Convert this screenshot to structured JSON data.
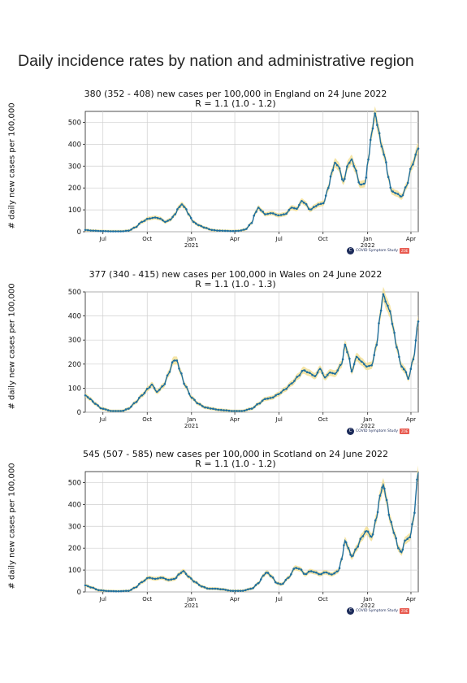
{
  "page": {
    "title": "Daily incidence rates by nation and administrative region"
  },
  "logo": {
    "mark": "C",
    "text": "COVID Symptom Study",
    "badge": "ZOE"
  },
  "chart_data": [
    {
      "type": "line",
      "title": "380 (352 - 408) new cases per 100,000 in England on 24 June 2022",
      "subtitle": "R = 1.1 (1.0 - 1.2)",
      "ylabel": "# daily new cases per 100,000",
      "ylim": [
        0,
        550
      ],
      "yticks": [
        0,
        100,
        200,
        300,
        400,
        500
      ],
      "xticks": [
        {
          "label": "Jul",
          "sub": "",
          "t": 0.053
        },
        {
          "label": "Oct",
          "sub": "",
          "t": 0.186
        },
        {
          "label": "Jan",
          "sub": "2021",
          "t": 0.319
        },
        {
          "label": "Apr",
          "sub": "",
          "t": 0.449
        },
        {
          "label": "Jul",
          "sub": "",
          "t": 0.582
        },
        {
          "label": "Oct",
          "sub": "",
          "t": 0.714
        },
        {
          "label": "Jan",
          "sub": "2022",
          "t": 0.848
        },
        {
          "label": "Apr",
          "sub": "",
          "t": 0.978
        }
      ],
      "series": [
        {
          "points": [
            [
              0,
              8
            ],
            [
              0.02,
              5
            ],
            [
              0.05,
              3
            ],
            [
              0.08,
              2
            ],
            [
              0.11,
              2
            ],
            [
              0.13,
              5
            ],
            [
              0.15,
              20
            ],
            [
              0.17,
              45
            ],
            [
              0.19,
              60
            ],
            [
              0.21,
              65
            ],
            [
              0.225,
              60
            ],
            [
              0.24,
              45
            ],
            [
              0.255,
              55
            ],
            [
              0.27,
              80
            ],
            [
              0.28,
              110
            ],
            [
              0.29,
              125
            ],
            [
              0.3,
              110
            ],
            [
              0.31,
              80
            ],
            [
              0.325,
              45
            ],
            [
              0.34,
              30
            ],
            [
              0.36,
              18
            ],
            [
              0.38,
              8
            ],
            [
              0.4,
              5
            ],
            [
              0.42,
              4
            ],
            [
              0.44,
              3
            ],
            [
              0.46,
              4
            ],
            [
              0.48,
              10
            ],
            [
              0.5,
              40
            ],
            [
              0.51,
              85
            ],
            [
              0.52,
              110
            ],
            [
              0.53,
              95
            ],
            [
              0.54,
              80
            ],
            [
              0.56,
              85
            ],
            [
              0.58,
              75
            ],
            [
              0.6,
              80
            ],
            [
              0.62,
              110
            ],
            [
              0.635,
              105
            ],
            [
              0.65,
              140
            ],
            [
              0.66,
              130
            ],
            [
              0.675,
              100
            ],
            [
              0.69,
              115
            ],
            [
              0.7,
              125
            ],
            [
              0.715,
              130
            ],
            [
              0.73,
              200
            ],
            [
              0.74,
              270
            ],
            [
              0.75,
              315
            ],
            [
              0.76,
              300
            ],
            [
              0.775,
              230
            ],
            [
              0.79,
              310
            ],
            [
              0.8,
              330
            ],
            [
              0.81,
              290
            ],
            [
              0.825,
              215
            ],
            [
              0.84,
              220
            ],
            [
              0.85,
              330
            ],
            [
              0.86,
              450
            ],
            [
              0.87,
              540
            ],
            [
              0.88,
              470
            ],
            [
              0.89,
              390
            ],
            [
              0.9,
              340
            ],
            [
              0.91,
              250
            ],
            [
              0.92,
              185
            ],
            [
              0.935,
              175
            ],
            [
              0.95,
              160
            ],
            [
              0.965,
              210
            ],
            [
              0.98,
              300
            ],
            [
              1.0,
              380
            ]
          ]
        }
      ]
    },
    {
      "type": "line",
      "title": "377 (340 - 415) new cases per 100,000 in Wales on 24 June 2022",
      "subtitle": "R = 1.1 (1.0 - 1.3)",
      "ylabel": "# daily new cases per 100,000",
      "ylim": [
        0,
        500
      ],
      "yticks": [
        0,
        100,
        200,
        300,
        400,
        500
      ],
      "xticks": [
        {
          "label": "Jul",
          "sub": "",
          "t": 0.053
        },
        {
          "label": "Oct",
          "sub": "",
          "t": 0.186
        },
        {
          "label": "Jan",
          "sub": "2021",
          "t": 0.319
        },
        {
          "label": "Apr",
          "sub": "",
          "t": 0.449
        },
        {
          "label": "Jul",
          "sub": "",
          "t": 0.582
        },
        {
          "label": "Oct",
          "sub": "",
          "t": 0.714
        },
        {
          "label": "Jan",
          "sub": "2022",
          "t": 0.848
        },
        {
          "label": "Apr",
          "sub": "",
          "t": 0.978
        }
      ],
      "series": [
        {
          "points": [
            [
              0,
              70
            ],
            [
              0.015,
              55
            ],
            [
              0.03,
              35
            ],
            [
              0.05,
              15
            ],
            [
              0.08,
              5
            ],
            [
              0.11,
              5
            ],
            [
              0.13,
              15
            ],
            [
              0.15,
              40
            ],
            [
              0.17,
              70
            ],
            [
              0.19,
              100
            ],
            [
              0.2,
              115
            ],
            [
              0.215,
              85
            ],
            [
              0.235,
              110
            ],
            [
              0.25,
              160
            ],
            [
              0.265,
              215
            ],
            [
              0.275,
              215
            ],
            [
              0.285,
              170
            ],
            [
              0.3,
              110
            ],
            [
              0.32,
              60
            ],
            [
              0.34,
              35
            ],
            [
              0.36,
              20
            ],
            [
              0.38,
              15
            ],
            [
              0.4,
              10
            ],
            [
              0.42,
              8
            ],
            [
              0.44,
              5
            ],
            [
              0.47,
              5
            ],
            [
              0.5,
              15
            ],
            [
              0.52,
              35
            ],
            [
              0.54,
              55
            ],
            [
              0.56,
              60
            ],
            [
              0.58,
              75
            ],
            [
              0.6,
              95
            ],
            [
              0.62,
              120
            ],
            [
              0.64,
              150
            ],
            [
              0.655,
              175
            ],
            [
              0.67,
              165
            ],
            [
              0.69,
              150
            ],
            [
              0.705,
              180
            ],
            [
              0.72,
              145
            ],
            [
              0.735,
              165
            ],
            [
              0.75,
              160
            ],
            [
              0.77,
              200
            ],
            [
              0.78,
              280
            ],
            [
              0.79,
              240
            ],
            [
              0.8,
              170
            ],
            [
              0.815,
              230
            ],
            [
              0.83,
              210
            ],
            [
              0.845,
              190
            ],
            [
              0.86,
              195
            ],
            [
              0.875,
              280
            ],
            [
              0.885,
              400
            ],
            [
              0.895,
              490
            ],
            [
              0.905,
              450
            ],
            [
              0.915,
              420
            ],
            [
              0.925,
              350
            ],
            [
              0.935,
              270
            ],
            [
              0.95,
              190
            ],
            [
              0.96,
              175
            ],
            [
              0.97,
              140
            ],
            [
              0.985,
              220
            ],
            [
              1.0,
              377
            ]
          ]
        }
      ]
    },
    {
      "type": "line",
      "title": "545 (507 - 585) new cases per 100,000 in Scotland on 24 June 2022",
      "subtitle": "R = 1.1 (1.0 - 1.2)",
      "ylabel": "# daily new cases per 100,000",
      "ylim": [
        0,
        550
      ],
      "yticks": [
        0,
        100,
        200,
        300,
        400,
        500
      ],
      "xticks": [
        {
          "label": "Jul",
          "sub": "",
          "t": 0.053
        },
        {
          "label": "Oct",
          "sub": "",
          "t": 0.186
        },
        {
          "label": "Jan",
          "sub": "2021",
          "t": 0.319
        },
        {
          "label": "Apr",
          "sub": "",
          "t": 0.449
        },
        {
          "label": "Jul",
          "sub": "",
          "t": 0.582
        },
        {
          "label": "Oct",
          "sub": "",
          "t": 0.714
        },
        {
          "label": "Jan",
          "sub": "2022",
          "t": 0.848
        },
        {
          "label": "Apr",
          "sub": "",
          "t": 0.978
        }
      ],
      "series": [
        {
          "points": [
            [
              0,
              30
            ],
            [
              0.02,
              20
            ],
            [
              0.04,
              8
            ],
            [
              0.07,
              4
            ],
            [
              0.1,
              3
            ],
            [
              0.13,
              5
            ],
            [
              0.15,
              20
            ],
            [
              0.17,
              45
            ],
            [
              0.19,
              65
            ],
            [
              0.21,
              60
            ],
            [
              0.23,
              65
            ],
            [
              0.25,
              55
            ],
            [
              0.27,
              60
            ],
            [
              0.28,
              80
            ],
            [
              0.295,
              95
            ],
            [
              0.31,
              70
            ],
            [
              0.33,
              45
            ],
            [
              0.35,
              25
            ],
            [
              0.37,
              15
            ],
            [
              0.39,
              15
            ],
            [
              0.41,
              12
            ],
            [
              0.44,
              5
            ],
            [
              0.47,
              5
            ],
            [
              0.5,
              15
            ],
            [
              0.52,
              40
            ],
            [
              0.535,
              75
            ],
            [
              0.545,
              90
            ],
            [
              0.56,
              70
            ],
            [
              0.575,
              40
            ],
            [
              0.59,
              35
            ],
            [
              0.61,
              65
            ],
            [
              0.63,
              110
            ],
            [
              0.645,
              105
            ],
            [
              0.66,
              80
            ],
            [
              0.675,
              95
            ],
            [
              0.69,
              90
            ],
            [
              0.705,
              80
            ],
            [
              0.72,
              90
            ],
            [
              0.74,
              80
            ],
            [
              0.76,
              95
            ],
            [
              0.77,
              150
            ],
            [
              0.78,
              235
            ],
            [
              0.79,
              200
            ],
            [
              0.8,
              160
            ],
            [
              0.815,
              200
            ],
            [
              0.83,
              250
            ],
            [
              0.845,
              280
            ],
            [
              0.86,
              250
            ],
            [
              0.875,
              340
            ],
            [
              0.885,
              440
            ],
            [
              0.895,
              490
            ],
            [
              0.905,
              420
            ],
            [
              0.915,
              330
            ],
            [
              0.93,
              260
            ],
            [
              0.94,
              200
            ],
            [
              0.95,
              180
            ],
            [
              0.96,
              235
            ],
            [
              0.975,
              250
            ],
            [
              0.985,
              330
            ],
            [
              1.0,
              545
            ]
          ]
        }
      ]
    }
  ]
}
